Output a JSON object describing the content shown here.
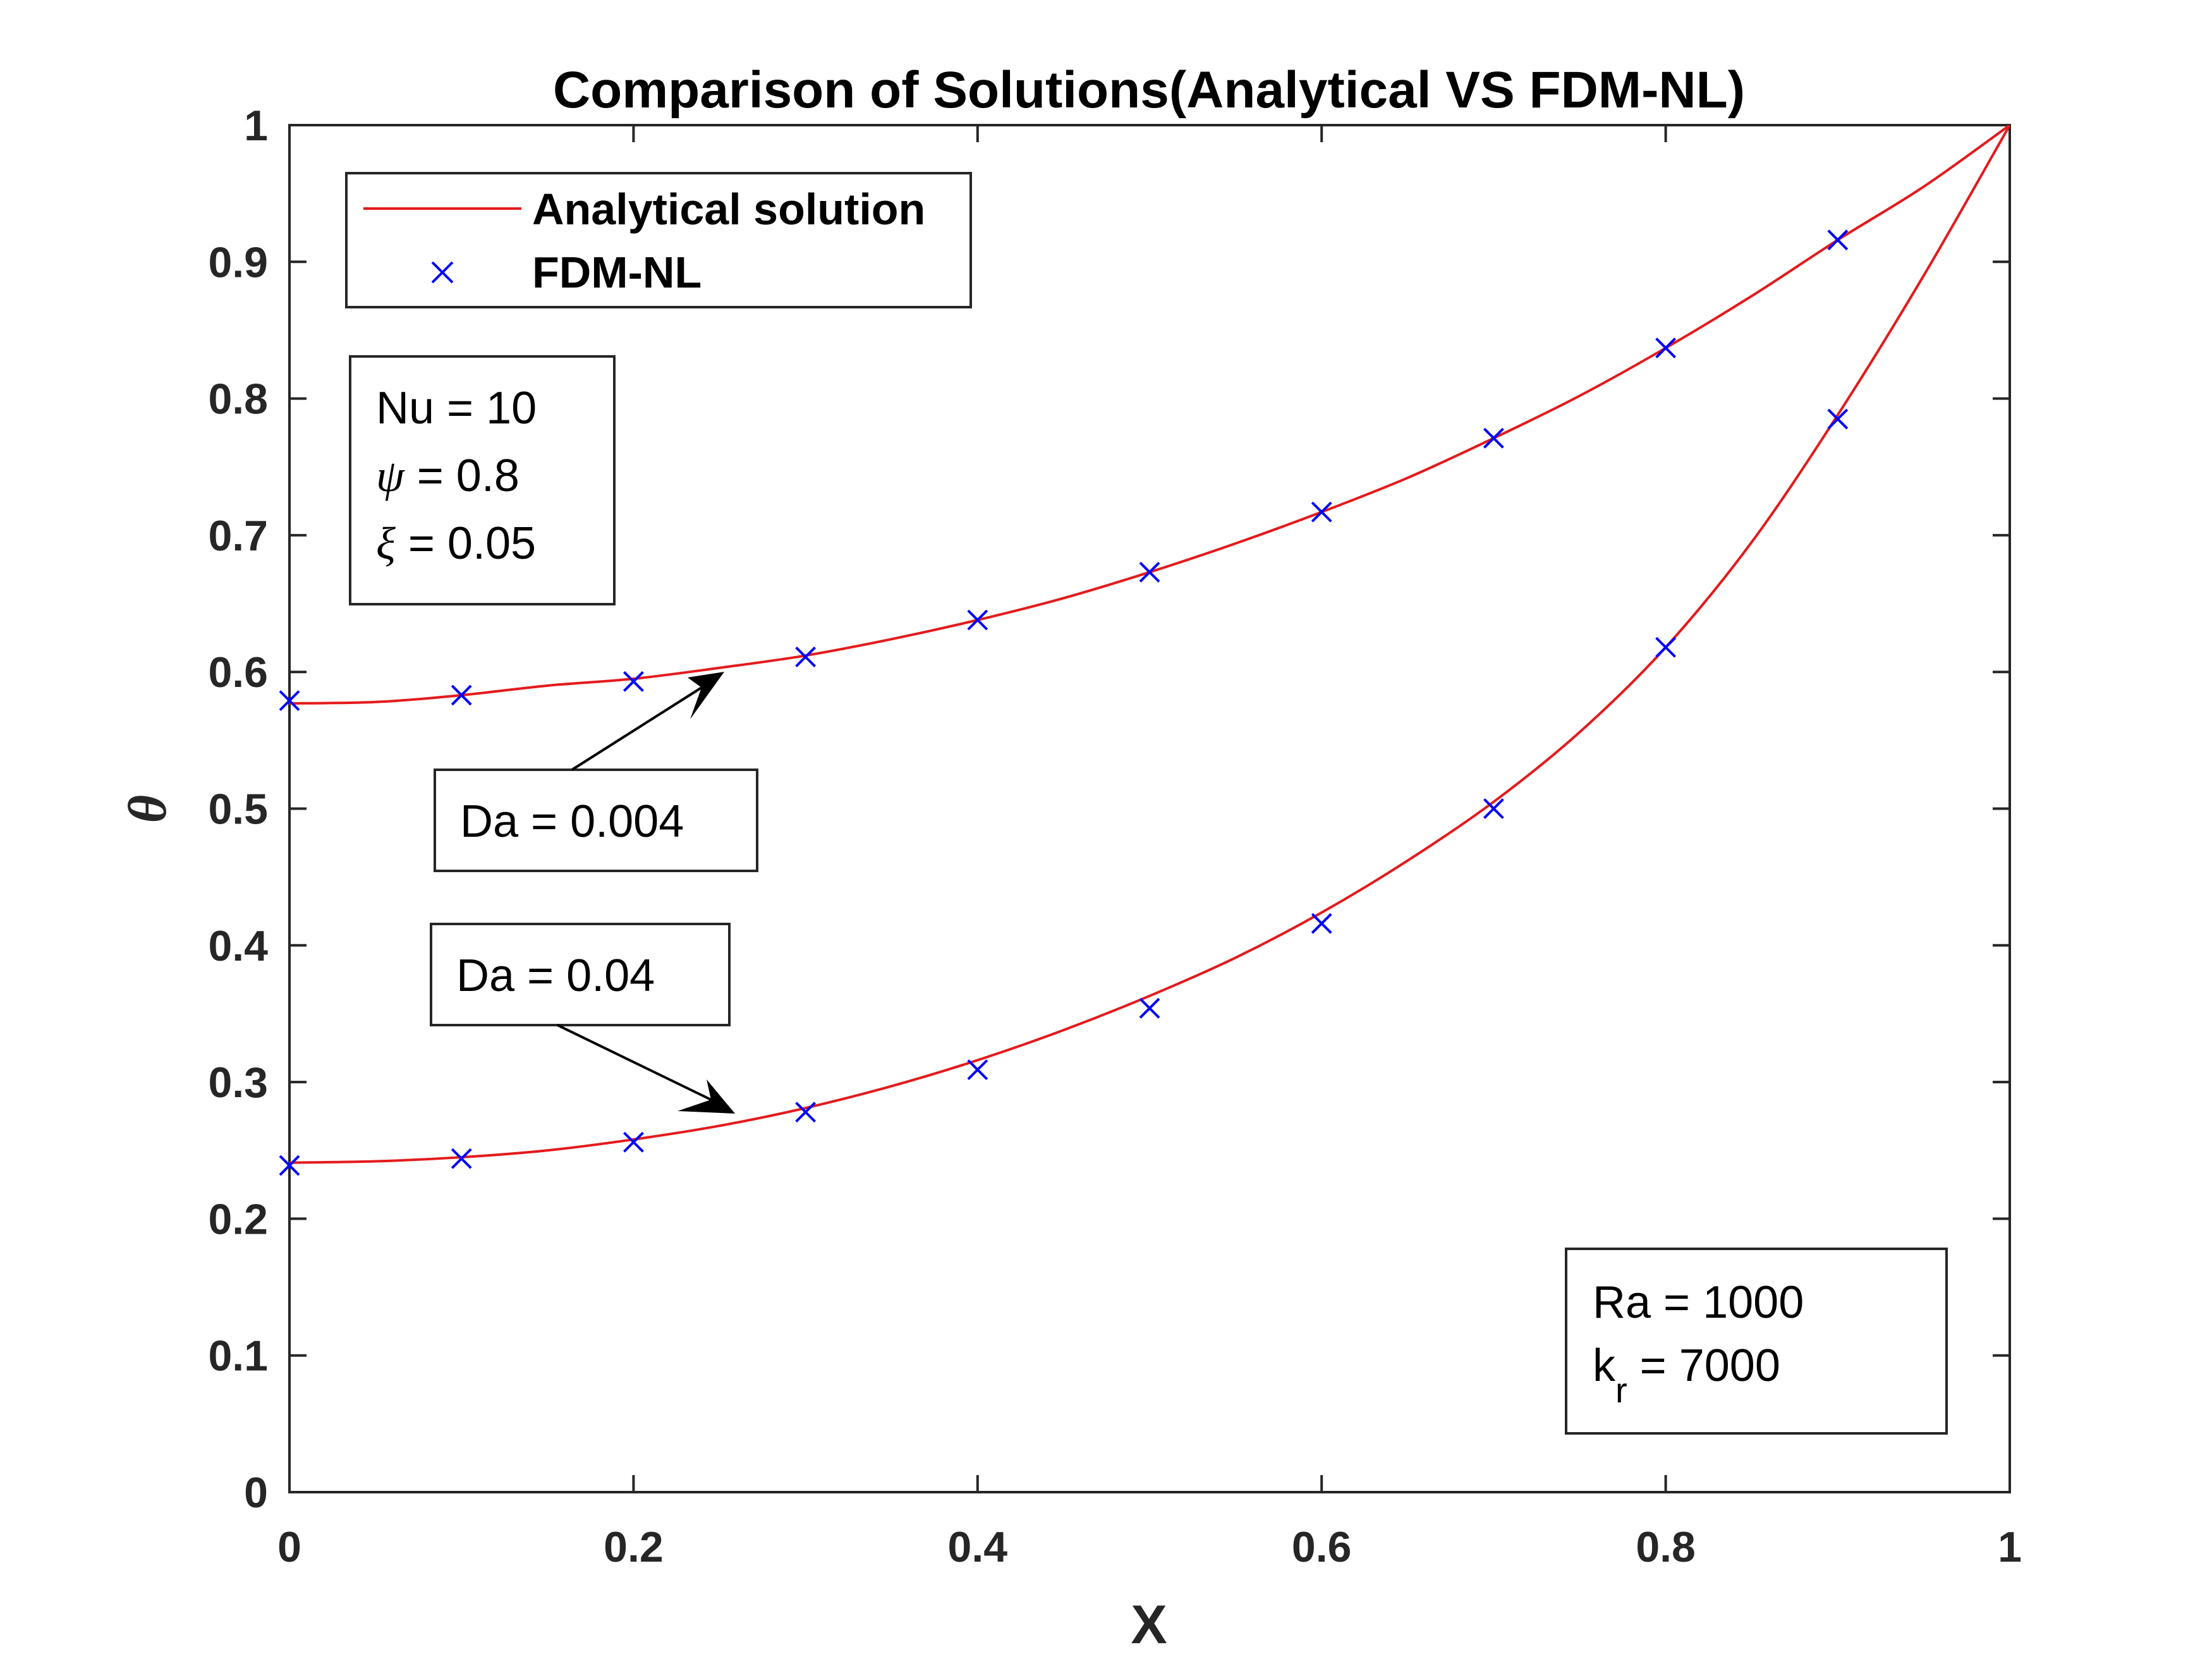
{
  "chart_data": {
    "type": "line",
    "title": "Comparison of Solutions(Analytical VS FDM-NL)",
    "xlabel": "X",
    "ylabel": "θ",
    "xlim": [
      0,
      1
    ],
    "ylim": [
      0,
      1
    ],
    "x_ticks": [
      "0",
      "0.2",
      "0.4",
      "0.6",
      "0.8",
      "1"
    ],
    "y_ticks": [
      "0",
      "0.1",
      "0.2",
      "0.3",
      "0.4",
      "0.5",
      "0.6",
      "0.7",
      "0.8",
      "0.9",
      "1"
    ],
    "grid": false,
    "legend_position": "top-left",
    "legend": [
      {
        "label": "Analytical solution",
        "style": "line",
        "color": "#e41a1c"
      },
      {
        "label": "FDM-NL",
        "style": "x-marker",
        "color": "#0000ff"
      }
    ],
    "series": [
      {
        "name": "Analytical solution",
        "case": "Da = 0.004",
        "color": "#e41a1c",
        "x": [
          0,
          0.05,
          0.1,
          0.15,
          0.2,
          0.25,
          0.3,
          0.35,
          0.4,
          0.45,
          0.5,
          0.55,
          0.6,
          0.65,
          0.7,
          0.75,
          0.8,
          0.85,
          0.9,
          0.95,
          1.0
        ],
        "y": [
          0.577,
          0.578,
          0.583,
          0.59,
          0.595,
          0.603,
          0.612,
          0.624,
          0.638,
          0.654,
          0.673,
          0.694,
          0.717,
          0.742,
          0.771,
          0.802,
          0.837,
          0.875,
          0.916,
          0.955,
          1.0
        ]
      },
      {
        "name": "FDM-NL",
        "case": "Da = 0.004",
        "color": "#0000ff",
        "x": [
          0,
          0.1,
          0.2,
          0.3,
          0.4,
          0.5,
          0.6,
          0.7,
          0.8,
          0.9
        ],
        "y": [
          0.579,
          0.583,
          0.593,
          0.611,
          0.638,
          0.673,
          0.717,
          0.771,
          0.837,
          0.916
        ]
      },
      {
        "name": "Analytical solution",
        "case": "Da = 0.04",
        "color": "#e41a1c",
        "x": [
          0,
          0.05,
          0.1,
          0.15,
          0.2,
          0.25,
          0.3,
          0.35,
          0.4,
          0.45,
          0.5,
          0.55,
          0.6,
          0.65,
          0.7,
          0.75,
          0.8,
          0.85,
          0.9,
          0.95,
          1.0
        ],
        "y": [
          0.241,
          0.242,
          0.245,
          0.25,
          0.258,
          0.268,
          0.281,
          0.297,
          0.316,
          0.338,
          0.363,
          0.391,
          0.424,
          0.462,
          0.505,
          0.556,
          0.618,
          0.695,
          0.788,
          0.89,
          1.0
        ]
      },
      {
        "name": "FDM-NL",
        "case": "Da = 0.04",
        "color": "#0000ff",
        "x": [
          0,
          0.1,
          0.2,
          0.3,
          0.4,
          0.5,
          0.6,
          0.7,
          0.8,
          0.9
        ],
        "y": [
          0.239,
          0.244,
          0.256,
          0.278,
          0.309,
          0.354,
          0.416,
          0.5,
          0.618,
          0.785
        ]
      }
    ],
    "annotations": {
      "params_box": {
        "nu": "Nu = 10",
        "psi_sym": "ψ",
        "psi_val": " = 0.8",
        "xi_sym": "ξ",
        "xi_val": " = 0.05"
      },
      "ra_box": {
        "ra": "Ra = 1000",
        "kr_base": "k",
        "kr_sub": "r",
        "kr_val": " = 7000"
      },
      "arrow_upper": {
        "label": "Da = 0.004",
        "points_to": {
          "x": 0.25,
          "y": 0.603
        }
      },
      "arrow_lower": {
        "label": "Da = 0.04",
        "points_to": {
          "x": 0.26,
          "y": 0.27
        }
      }
    }
  }
}
